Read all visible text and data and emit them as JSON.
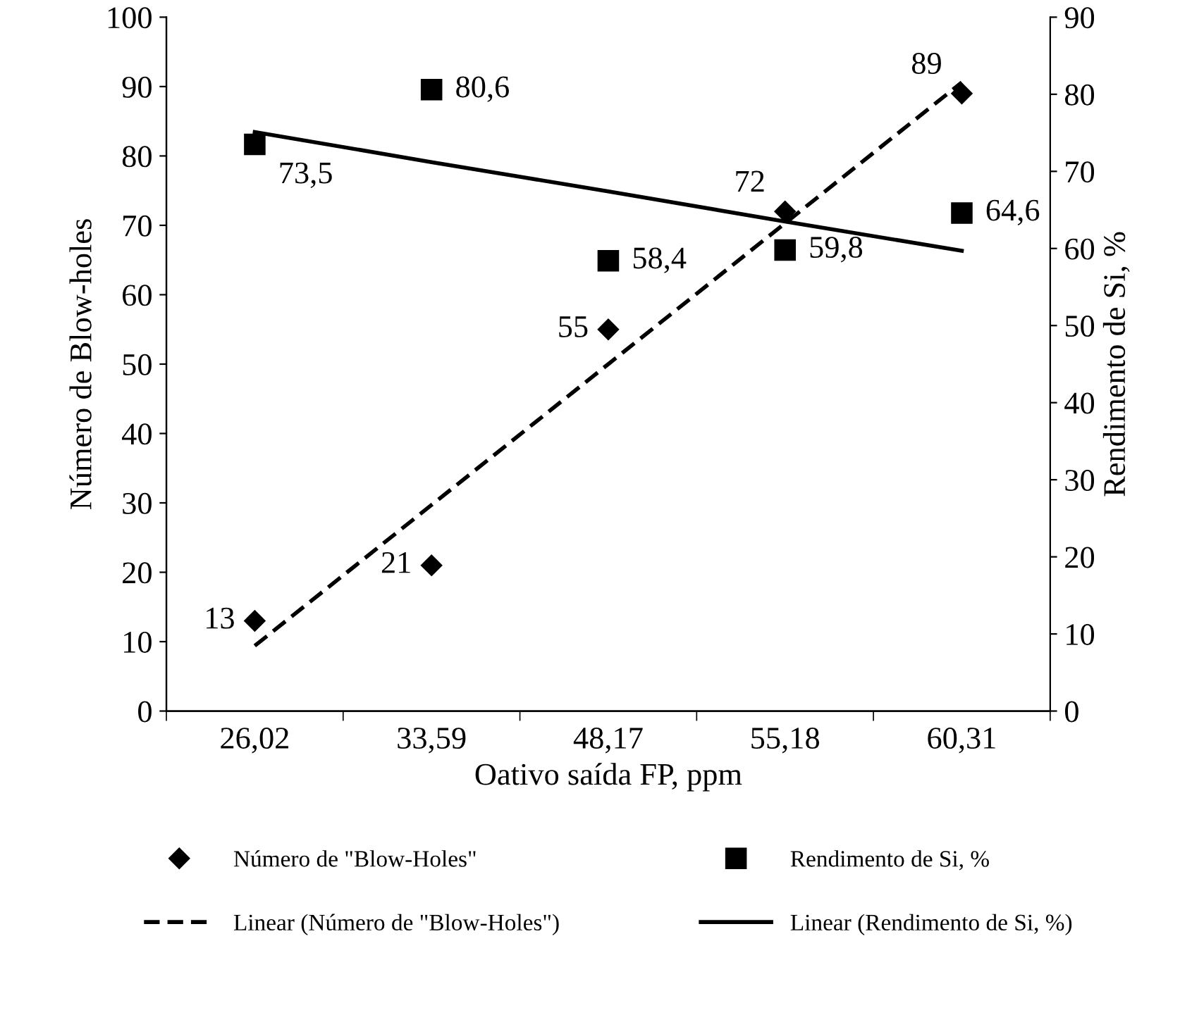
{
  "chart_data": {
    "type": "scatter",
    "xlabel": "Oativo saída FP, ppm",
    "ylabel": "Número de Blow-holes",
    "y2label": "Rendimento de Si, %",
    "categories": [
      "26,02",
      "33,59",
      "48,17",
      "55,18",
      "60,31"
    ],
    "series": [
      {
        "name": "Número de \"Blow-Holes\"",
        "marker": "diamond",
        "color": "#000000",
        "values": [
          13,
          21,
          55,
          72,
          89
        ],
        "value_labels": [
          "13",
          "21",
          "55",
          "72",
          "89"
        ]
      },
      {
        "name": "Linear (Número de \"Blow-Holes\")",
        "type": "line",
        "line_style": "dashed",
        "color": "#000000",
        "values": [
          9.4,
          29.7,
          50,
          70.3,
          90.6
        ]
      },
      {
        "name": "Rendimento de Si, %",
        "marker": "square",
        "axis": "y2",
        "color": "#000000",
        "values": [
          73.5,
          80.6,
          58.4,
          59.8,
          64.6
        ],
        "value_labels": [
          "73,5",
          "80,6",
          "58,4",
          "59,8",
          "64,6"
        ]
      },
      {
        "name": "Linear (Rendimento de Si, %)",
        "type": "line",
        "line_style": "solid",
        "axis": "y2",
        "color": "#000000",
        "values": [
          75.1,
          71.2,
          67.4,
          63.5,
          59.7
        ]
      }
    ],
    "ylim": [
      0,
      100
    ],
    "yticks": [
      0,
      10,
      20,
      30,
      40,
      50,
      60,
      70,
      80,
      90,
      100
    ],
    "y2lim": [
      0,
      90
    ],
    "y2ticks": [
      0,
      10,
      20,
      30,
      40,
      50,
      60,
      70,
      80,
      90
    ],
    "grid": false,
    "legend": "bottom"
  }
}
